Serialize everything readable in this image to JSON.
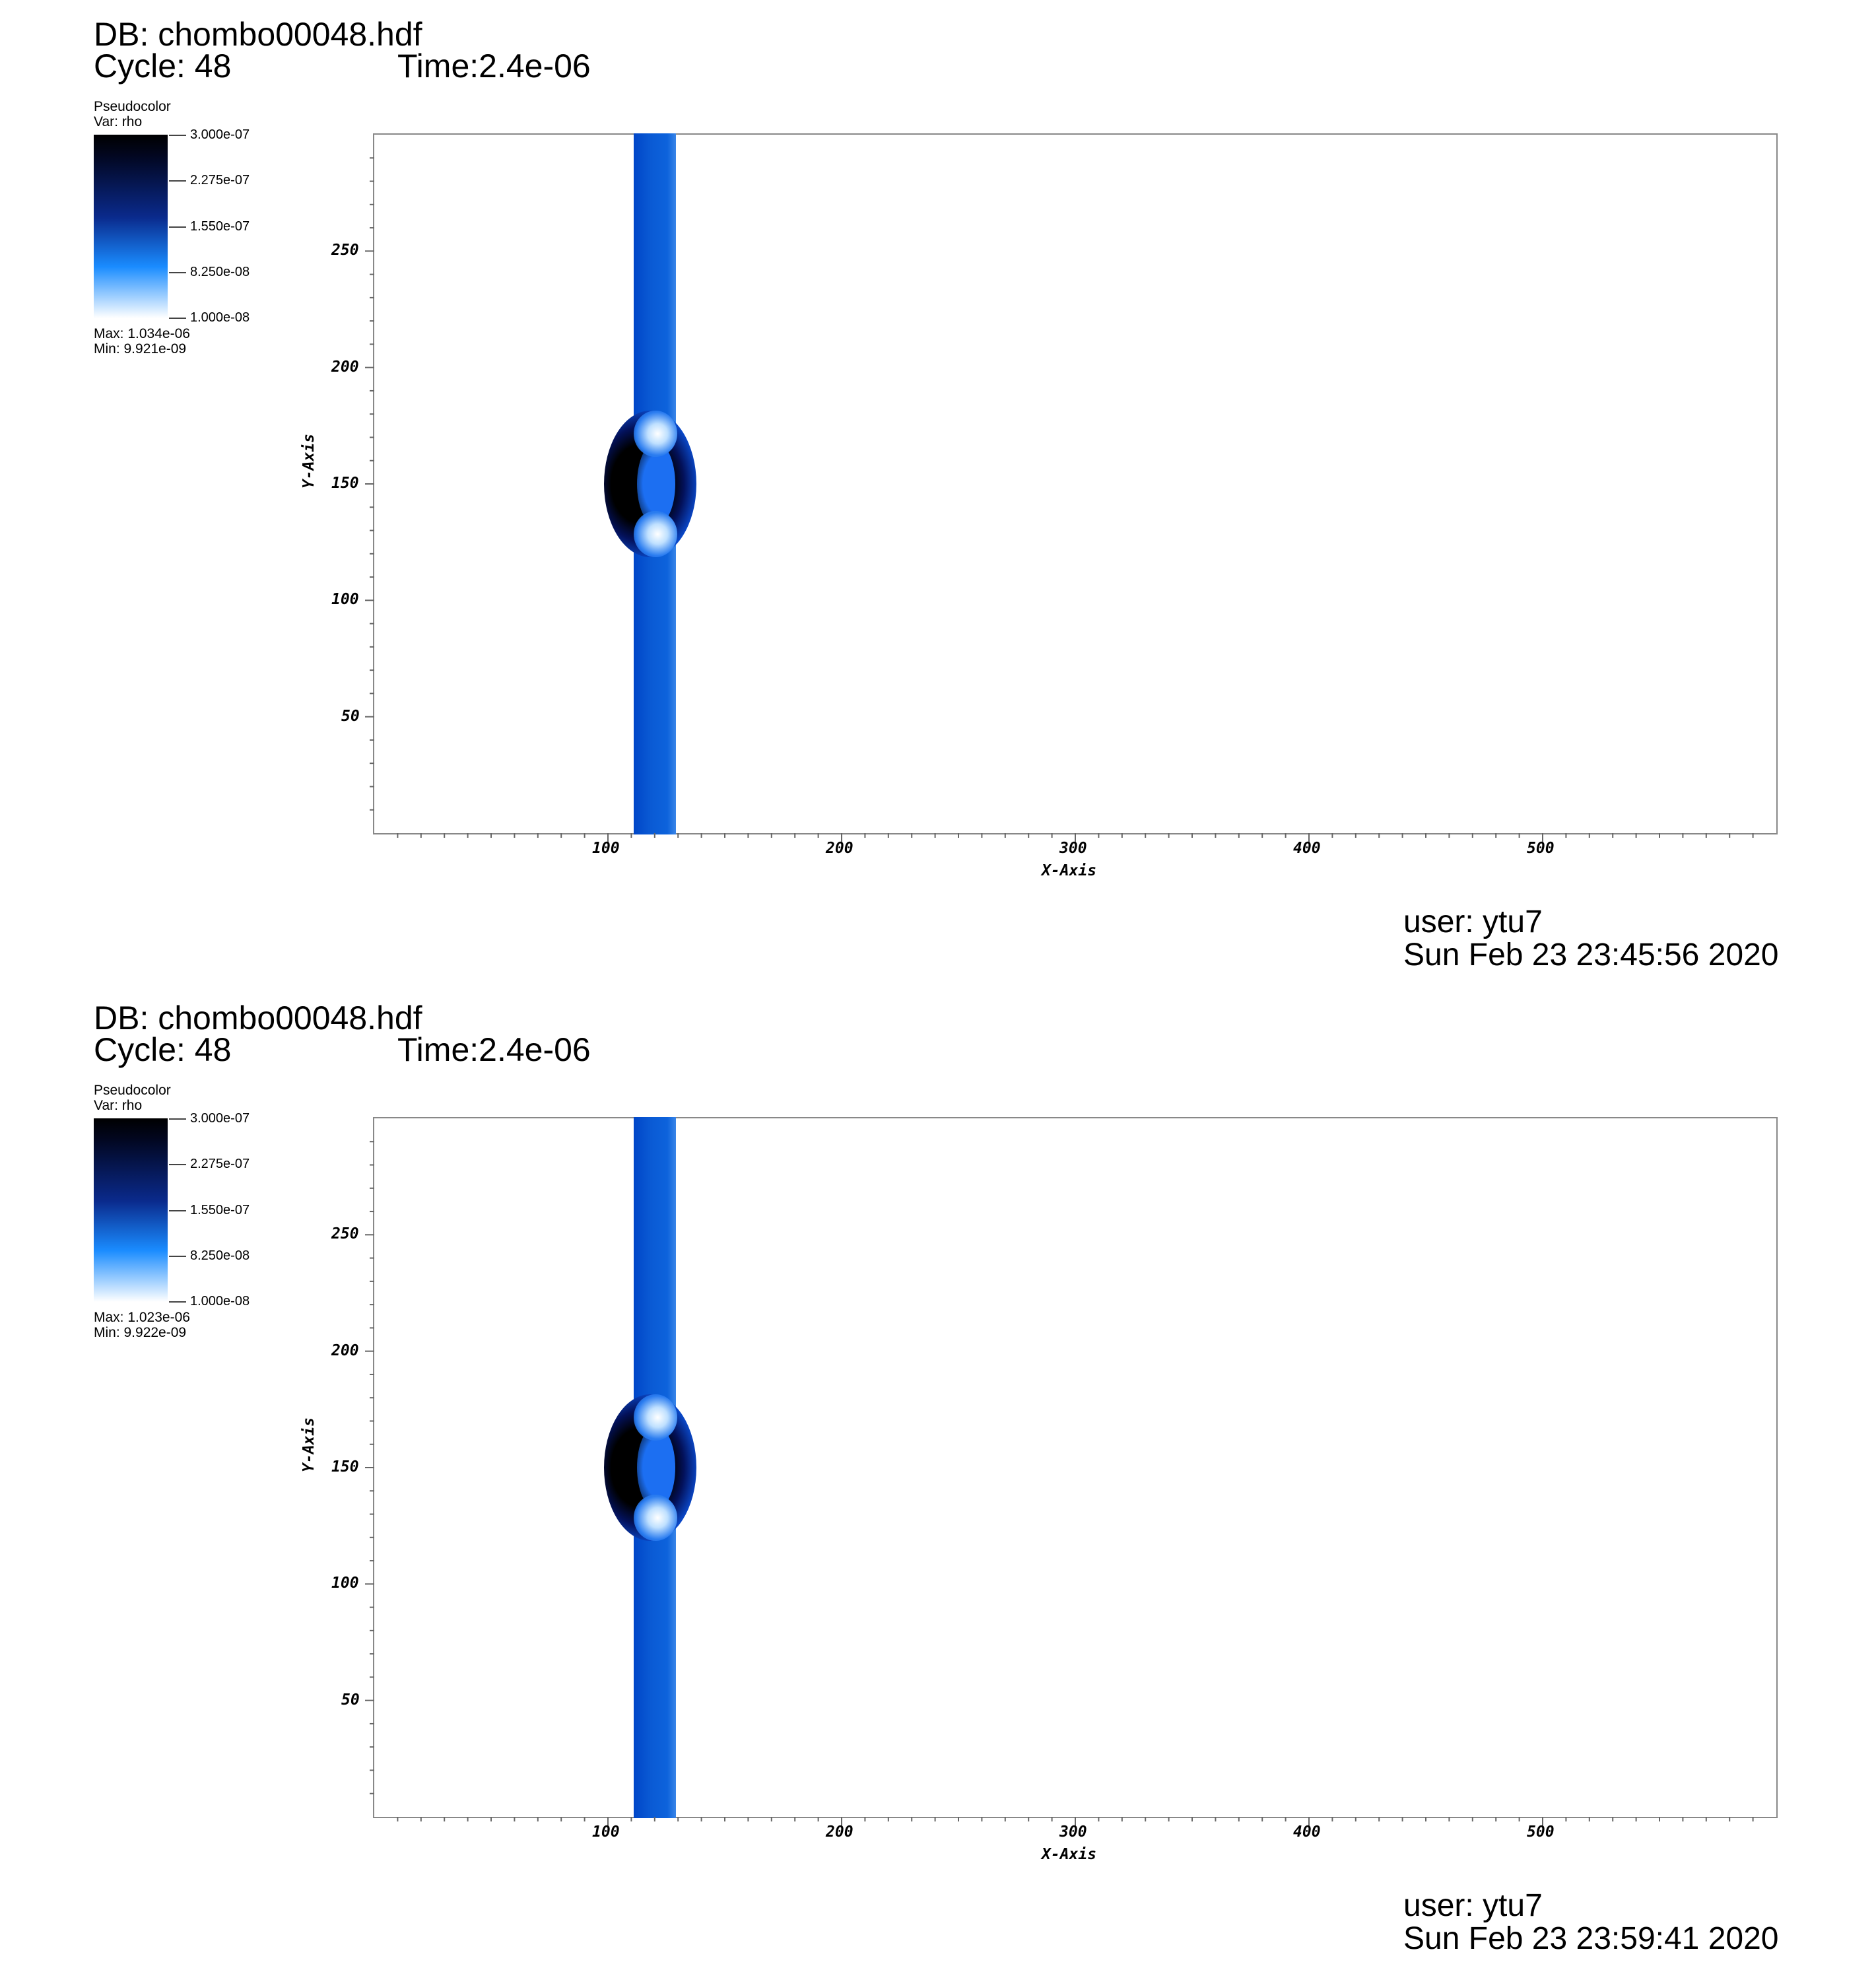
{
  "colors": {
    "background": "#ffffff",
    "frame": "#888888",
    "colormap": [
      "#000000",
      "#0a2a8c",
      "#1a8cff",
      "#ffffff"
    ],
    "band": "#0d63dc"
  },
  "panels": [
    {
      "db": "DB: chombo00048.hdf",
      "cycle": "Cycle: 48",
      "time": "Time:2.4e-06",
      "legend": {
        "title": "Pseudocolor",
        "var": "Var: rho",
        "ticks": [
          "3.000e-07",
          "2.275e-07",
          "1.550e-07",
          "8.250e-08",
          "1.000e-08"
        ],
        "max": "Max:  1.034e-06",
        "min": "Min:  9.921e-09"
      },
      "user": "user: ytu7",
      "date": "Sun Feb 23 23:45:56 2020"
    },
    {
      "db": "DB: chombo00048.hdf",
      "cycle": "Cycle: 48",
      "time": "Time:2.4e-06",
      "legend": {
        "title": "Pseudocolor",
        "var": "Var: rho",
        "ticks": [
          "3.000e-07",
          "2.275e-07",
          "1.550e-07",
          "8.250e-08",
          "1.000e-08"
        ],
        "max": "Max:  1.023e-06",
        "min": "Min:  9.922e-09"
      },
      "user": "user: ytu7",
      "date": "Sun Feb 23 23:59:41 2020"
    }
  ],
  "chart_data": [
    {
      "type": "heatmap",
      "title": "",
      "xlabel": "X-Axis",
      "ylabel": "Y-Axis",
      "xticks": [
        100,
        200,
        300,
        400,
        500
      ],
      "yticks": [
        50,
        100,
        150,
        200,
        250
      ],
      "xlim": [
        0,
        600
      ],
      "ylim": [
        0,
        300
      ],
      "variable": "rho",
      "color_range": [
        1e-08,
        3e-07
      ],
      "max": 1.034e-06,
      "min": 9.921e-09
    },
    {
      "type": "heatmap",
      "title": "",
      "xlabel": "X-Axis",
      "ylabel": "Y-Axis",
      "xticks": [
        100,
        200,
        300,
        400,
        500
      ],
      "yticks": [
        50,
        100,
        150,
        200,
        250
      ],
      "xlim": [
        0,
        600
      ],
      "ylim": [
        0,
        300
      ],
      "variable": "rho",
      "color_range": [
        1e-08,
        3e-07
      ],
      "max": 1.023e-06,
      "min": 9.922e-09
    }
  ]
}
